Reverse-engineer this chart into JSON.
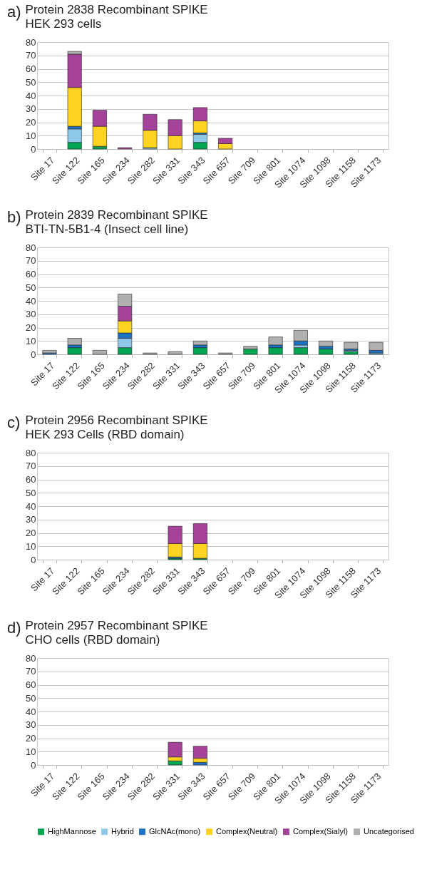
{
  "chart_data": [
    {
      "type": "bar",
      "title": "Protein 2838 Recombinant SPIKE",
      "subtitle": "HEK 293 cells",
      "annotations": [
        "a)"
      ],
      "stacked": true,
      "grid": "y",
      "legend": false,
      "categories": [
        "Site 17",
        "Site 122",
        "Site 165",
        "Site 234",
        "Site 282",
        "Site 331",
        "Site 343",
        "Site 657",
        "Site 709",
        "Site 801",
        "Site 1074",
        "Site 1098",
        "Site 1158",
        "Site 1173"
      ],
      "ylim": [
        0,
        80
      ],
      "yticks": [
        0,
        10,
        20,
        30,
        40,
        50,
        60,
        70,
        80
      ],
      "series": [
        {
          "color": "#00a650",
          "values": [
            0,
            5,
            2,
            0,
            0,
            0,
            5,
            0,
            0,
            0,
            0,
            0,
            0,
            0
          ]
        },
        {
          "color": "#8ec9ec",
          "values": [
            0,
            10,
            0,
            0,
            1,
            0,
            6,
            0,
            0,
            0,
            0,
            0,
            0,
            0
          ]
        },
        {
          "color": "#1c72c4",
          "values": [
            0,
            2,
            0,
            0,
            0,
            0,
            1,
            0,
            0,
            0,
            0,
            0,
            0,
            0
          ]
        },
        {
          "color": "#ffd320",
          "values": [
            0,
            29,
            15,
            0,
            13,
            10,
            9,
            4,
            0,
            0,
            0,
            0,
            0,
            0
          ]
        },
        {
          "color": "#a5439a",
          "values": [
            0,
            25,
            12,
            1,
            12,
            12,
            10,
            4,
            0,
            0,
            0,
            0,
            0,
            0
          ]
        },
        {
          "color": "#b0b0b0",
          "values": [
            0,
            2,
            0,
            0,
            0,
            0,
            0,
            0,
            0,
            0,
            0,
            0,
            0,
            0
          ]
        }
      ]
    },
    {
      "type": "bar",
      "title": "Protein 2839 Recombinant SPIKE",
      "subtitle": "BTI-TN-5B1-4 (Insect cell line)",
      "annotations": [
        "b)"
      ],
      "stacked": true,
      "grid": "y",
      "legend": false,
      "categories": [
        "Site 17",
        "Site 122",
        "Site 165",
        "Site 234",
        "Site 282",
        "Site 331",
        "Site 343",
        "Site 657",
        "Site 709",
        "Site 801",
        "Site 1074",
        "Site 1098",
        "Site 1158",
        "Site 1173"
      ],
      "ylim": [
        0,
        80
      ],
      "yticks": [
        0,
        10,
        20,
        30,
        40,
        50,
        60,
        70,
        80
      ],
      "series": [
        {
          "color": "#00a650",
          "values": [
            0,
            5,
            0,
            5,
            0,
            0,
            5,
            0,
            4,
            5,
            5,
            4,
            2,
            0
          ]
        },
        {
          "color": "#8ec9ec",
          "values": [
            0,
            0,
            0,
            7,
            0,
            0,
            0,
            0,
            0,
            0,
            2,
            0,
            1,
            1
          ]
        },
        {
          "color": "#1c72c4",
          "values": [
            1,
            2,
            0,
            4,
            0,
            0,
            2,
            0,
            0,
            2,
            3,
            2,
            1,
            2
          ]
        },
        {
          "color": "#ffd320",
          "values": [
            0,
            0,
            0,
            9,
            0,
            0,
            0,
            0,
            0,
            0,
            0,
            0,
            0,
            0
          ]
        },
        {
          "color": "#a5439a",
          "values": [
            0,
            0,
            0,
            11,
            0,
            0,
            0,
            0,
            0,
            0,
            0,
            0,
            0,
            0
          ]
        },
        {
          "color": "#b0b0b0",
          "values": [
            2,
            5,
            3,
            9,
            1,
            2,
            3,
            1,
            2,
            6,
            8,
            4,
            5,
            6
          ]
        }
      ]
    },
    {
      "type": "bar",
      "title": "Protein 2956  Recombinant SPIKE",
      "subtitle": "HEK 293 Cells (RBD domain)",
      "annotations": [
        "c)"
      ],
      "stacked": true,
      "grid": "y",
      "legend": false,
      "categories": [
        "Site 17",
        "Site 122",
        "Site 165",
        "Site 234",
        "Site 282",
        "Site 331",
        "Site 343",
        "Site 657",
        "Site 709",
        "Site 801",
        "Site 1074",
        "Site 1098",
        "Site 1158",
        "Site 1173"
      ],
      "ylim": [
        0,
        80
      ],
      "yticks": [
        0,
        10,
        20,
        30,
        40,
        50,
        60,
        70,
        80
      ],
      "series": [
        {
          "color": "#00a650",
          "values": [
            0,
            0,
            0,
            0,
            0,
            1,
            1,
            0,
            0,
            0,
            0,
            0,
            0,
            0
          ]
        },
        {
          "color": "#8ec9ec",
          "values": [
            0,
            0,
            0,
            0,
            0,
            0,
            0,
            0,
            0,
            0,
            0,
            0,
            0,
            0
          ]
        },
        {
          "color": "#1c72c4",
          "values": [
            0,
            0,
            0,
            0,
            0,
            1,
            0,
            0,
            0,
            0,
            0,
            0,
            0,
            0
          ]
        },
        {
          "color": "#ffd320",
          "values": [
            0,
            0,
            0,
            0,
            0,
            10,
            11,
            0,
            0,
            0,
            0,
            0,
            0,
            0
          ]
        },
        {
          "color": "#a5439a",
          "values": [
            0,
            0,
            0,
            0,
            0,
            13,
            15,
            0,
            0,
            0,
            0,
            0,
            0,
            0
          ]
        },
        {
          "color": "#b0b0b0",
          "values": [
            0,
            0,
            0,
            0,
            0,
            0,
            0,
            0,
            0,
            0,
            0,
            0,
            0,
            0
          ]
        }
      ]
    },
    {
      "type": "bar",
      "title": "Protein 2957 Recombinant SPIKE",
      "subtitle": "CHO cells (RBD domain)",
      "annotations": [
        "d)"
      ],
      "stacked": true,
      "grid": "y",
      "legend": "bottom",
      "categories": [
        "Site 17",
        "Site 122",
        "Site 165",
        "Site 234",
        "Site 282",
        "Site 331",
        "Site 343",
        "Site 657",
        "Site 709",
        "Site 801",
        "Site 1074",
        "Site 1098",
        "Site 1158",
        "Site 1173"
      ],
      "ylim": [
        0,
        80
      ],
      "yticks": [
        0,
        10,
        20,
        30,
        40,
        50,
        60,
        70,
        80
      ],
      "series": [
        {
          "name": "HighMannose",
          "color": "#00a650",
          "values": [
            0,
            0,
            0,
            0,
            0,
            3,
            0,
            0,
            0,
            0,
            0,
            0,
            0,
            0
          ]
        },
        {
          "name": "Hybrid",
          "color": "#8ec9ec",
          "values": [
            0,
            0,
            0,
            0,
            0,
            0,
            0,
            0,
            0,
            0,
            0,
            0,
            0,
            0
          ]
        },
        {
          "name": "GlcNAc(mono)",
          "color": "#1c72c4",
          "values": [
            0,
            0,
            0,
            0,
            0,
            0,
            2,
            0,
            0,
            0,
            0,
            0,
            0,
            0
          ]
        },
        {
          "name": "Complex(Neutral)",
          "color": "#ffd320",
          "values": [
            0,
            0,
            0,
            0,
            0,
            3,
            3,
            0,
            0,
            0,
            0,
            0,
            0,
            0
          ]
        },
        {
          "name": "Complex(Sialyl)",
          "color": "#a5439a",
          "values": [
            0,
            0,
            0,
            0,
            0,
            11,
            9,
            0,
            0,
            0,
            0,
            0,
            0,
            0
          ]
        },
        {
          "name": "Uncategorised",
          "color": "#b0b0b0",
          "values": [
            0,
            0,
            0,
            0,
            0,
            0,
            0,
            0,
            0,
            0,
            0,
            0,
            0,
            0
          ]
        }
      ]
    }
  ]
}
